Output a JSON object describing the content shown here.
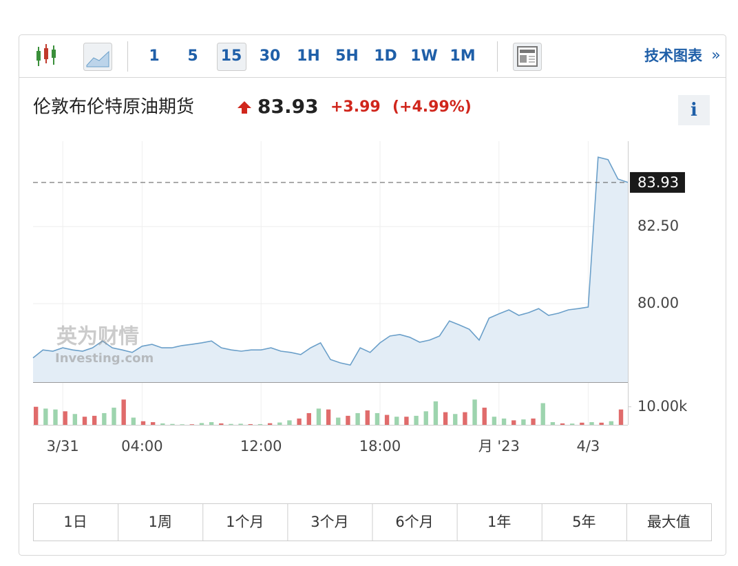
{
  "toolbar": {
    "intervals": [
      "1",
      "5",
      "15",
      "30",
      "1H",
      "5H",
      "1D",
      "1W",
      "1M"
    ],
    "link": "技术图表"
  },
  "header": {
    "name": "伦敦布伦特原油期货",
    "price": "83.93",
    "change": "+3.99",
    "change_pct": "(+4.99%)"
  },
  "watermark": [
    "英为财情",
    "Investing.com"
  ],
  "ranges": [
    "1日",
    "1周",
    "1个月",
    "3个月",
    "6个月",
    "1年",
    "5年",
    "最大值"
  ],
  "chart_data": [
    {
      "type": "area",
      "color": "#6a9fc9",
      "fill": "#e3edf6",
      "categories": [
        null,
        null,
        null,
        "3/31",
        null,
        null,
        null,
        null,
        null,
        null,
        null,
        "04:00",
        null,
        null,
        null,
        null,
        null,
        null,
        null,
        null,
        null,
        null,
        null,
        "12:00",
        null,
        null,
        null,
        null,
        null,
        null,
        null,
        null,
        null,
        null,
        null,
        "18:00",
        null,
        null,
        null,
        null,
        null,
        null,
        null,
        null,
        null,
        null,
        null,
        "月 '23",
        null,
        null,
        null,
        null,
        null,
        null,
        null,
        null,
        "4/3",
        null,
        null,
        null,
        null
      ],
      "values": [
        78.24,
        78.5,
        78.46,
        78.57,
        78.5,
        78.46,
        78.57,
        78.79,
        78.57,
        78.5,
        78.42,
        78.62,
        78.68,
        78.57,
        78.57,
        78.64,
        78.68,
        78.73,
        78.79,
        78.57,
        78.5,
        78.46,
        78.5,
        78.5,
        78.57,
        78.46,
        78.42,
        78.35,
        78.57,
        78.73,
        78.19,
        78.08,
        78.01,
        78.57,
        78.42,
        78.73,
        78.95,
        79.0,
        78.91,
        78.75,
        78.82,
        78.95,
        79.44,
        79.31,
        79.17,
        78.82,
        79.53,
        79.67,
        79.8,
        79.62,
        79.71,
        79.84,
        79.62,
        79.69,
        79.8,
        79.84,
        79.89,
        84.75,
        84.67,
        84.04,
        83.93
      ],
      "ylim": [
        77.455,
        85.268
      ],
      "yticks": [
        {
          "value": 80,
          "label": "80.00"
        },
        {
          "value": 82.5,
          "label": "82.50"
        }
      ],
      "last_price": {
        "value": 83.93,
        "label": "83.93"
      },
      "grid": true
    },
    {
      "type": "bar",
      "values": [
        10000,
        9000,
        8500,
        7500,
        6000,
        4500,
        5000,
        6500,
        9500,
        14000,
        4000,
        2000,
        1500,
        800,
        500,
        300,
        300,
        1000,
        1500,
        800,
        500,
        600,
        400,
        400,
        900,
        1300,
        2500,
        3500,
        6500,
        9000,
        8500,
        4000,
        5000,
        6500,
        8000,
        6500,
        5500,
        4500,
        4500,
        5000,
        7500,
        13000,
        7000,
        6000,
        7000,
        14000,
        9500,
        4500,
        3500,
        2500,
        3000,
        3500,
        12000,
        1500,
        800,
        700,
        1200,
        1500,
        1200,
        2000,
        8500
      ],
      "colors": [
        "#e06b6b",
        "#9dd4ae",
        "#9dd4ae",
        "#e06b6b",
        "#9dd4ae",
        "#e06b6b",
        "#e06b6b",
        "#9dd4ae",
        "#9dd4ae",
        "#e06b6b",
        "#9dd4ae",
        "#e06b6b",
        "#e06b6b",
        "#9dd4ae",
        "#9dd4ae",
        "#9dd4ae",
        "#e06b6b",
        "#9dd4ae",
        "#9dd4ae",
        "#e06b6b",
        "#9dd4ae",
        "#9dd4ae",
        "#e06b6b",
        "#9dd4ae",
        "#e06b6b",
        "#9dd4ae",
        "#9dd4ae",
        "#e06b6b",
        "#e06b6b",
        "#9dd4ae",
        "#e06b6b",
        "#9dd4ae",
        "#e06b6b",
        "#9dd4ae",
        "#e06b6b",
        "#9dd4ae",
        "#e06b6b",
        "#9dd4ae",
        "#e06b6b",
        "#9dd4ae",
        "#9dd4ae",
        "#9dd4ae",
        "#e06b6b",
        "#9dd4ae",
        "#e06b6b",
        "#9dd4ae",
        "#e06b6b",
        "#9dd4ae",
        "#9dd4ae",
        "#e06b6b",
        "#9dd4ae",
        "#e06b6b",
        "#9dd4ae",
        "#9dd4ae",
        "#e06b6b",
        "#9dd4ae",
        "#e06b6b",
        "#9dd4ae",
        "#e06b6b",
        "#9dd4ae",
        "#e06b6b"
      ],
      "ylim": [
        0,
        16000
      ],
      "yticks": [
        {
          "value": 10000,
          "label": "10.00k"
        }
      ]
    }
  ]
}
